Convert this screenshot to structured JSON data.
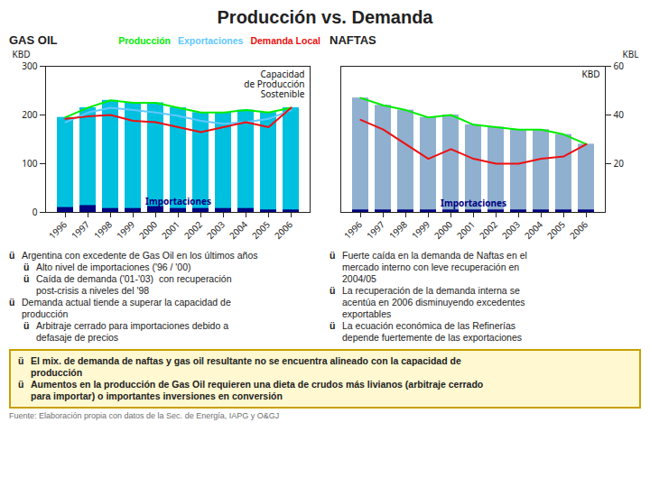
{
  "title": "Producción vs. Demanda",
  "chart_data": [
    {
      "type": "bar",
      "title": "GAS OIL",
      "ylabel": "KBD",
      "categories": [
        "1996",
        "1997",
        "1998",
        "1999",
        "2000",
        "2001",
        "2002",
        "2003",
        "2004",
        "2005",
        "2006"
      ],
      "ylim": [
        0,
        300
      ],
      "yticks": [
        0,
        100,
        200,
        300
      ],
      "series": [
        {
          "type": "bar",
          "color": "#00c0e0",
          "values": [
            195,
            215,
            230,
            225,
            225,
            215,
            205,
            205,
            210,
            205,
            215
          ]
        },
        {
          "name": "Importaciones",
          "type": "bar",
          "color": "#000080",
          "values": [
            10,
            14,
            8,
            8,
            12,
            8,
            8,
            8,
            8,
            5,
            5
          ]
        },
        {
          "name": "Producción",
          "type": "line",
          "color": "#00ee00",
          "values": [
            195,
            215,
            230,
            225,
            225,
            215,
            205,
            205,
            210,
            205,
            215
          ]
        },
        {
          "name": "Exportaciones",
          "type": "line",
          "color": "#60c8ff",
          "values": [
            185,
            205,
            215,
            210,
            205,
            198,
            188,
            182,
            185,
            192,
            210
          ]
        },
        {
          "name": "Demanda Local",
          "type": "line",
          "color": "#ee1010",
          "values": [
            192,
            197,
            200,
            188,
            185,
            175,
            165,
            175,
            185,
            175,
            215
          ]
        }
      ],
      "annotations": [
        "Capacidad\nde Producción\nSostenible"
      ]
    },
    {
      "type": "bar",
      "title": "NAFTAS",
      "ylabel": "KBL",
      "categories": [
        "1996",
        "1997",
        "1998",
        "1999",
        "2000",
        "2001",
        "2002",
        "2003",
        "2004",
        "2005",
        "2006"
      ],
      "ylim": [
        0,
        60
      ],
      "yticks": [
        20,
        40,
        60
      ],
      "series": [
        {
          "type": "bar",
          "color": "#90b0d0",
          "values": [
            47,
            44,
            42,
            39,
            40,
            36,
            35,
            34,
            34,
            32,
            28
          ]
        },
        {
          "name": "Importaciones",
          "type": "bar",
          "color": "#000080",
          "values": [
            1,
            1,
            1,
            1,
            1,
            1,
            1,
            1,
            1,
            1,
            1
          ]
        },
        {
          "type": "line",
          "color": "#00ee00",
          "values": [
            47,
            44,
            42,
            39,
            40,
            36,
            35,
            34,
            34,
            32,
            28
          ]
        },
        {
          "type": "line",
          "color": "#ee1010",
          "values": [
            38,
            34,
            28,
            22,
            26,
            22,
            20,
            20,
            22,
            23,
            28
          ]
        }
      ],
      "annotations": [
        "KBD"
      ]
    }
  ],
  "annotations": [
    [
      {
        "bullet": "ü",
        "text": "Argentina con excedente de Gas Oil en los últimos años",
        "items": [
          {
            "bullet": "ü",
            "text": "Alto nivel de importaciones ('96 / '00)"
          },
          {
            "bullet": "ü",
            "text": "Caída de demanda ('01-'03)  con recuperación\npost-crisis a niveles del '98"
          }
        ]
      },
      {
        "bullet": "ü",
        "text": "Demanda actual tiende a superar la capacidad de\nproducción",
        "items": [
          {
            "bullet": "ü",
            "text": "Arbitraje cerrado para importaciones debido a\ndefasaje de precios"
          }
        ]
      }
    ],
    [
      {
        "bullet": "ü",
        "text": "Fuerte caída en la demanda de Naftas en el\nmercado interno con leve recuperación en\n2004/05"
      },
      {
        "bullet": "ü",
        "text": "La recuperación de la demanda interna se\nacentúa en 2006 disminuyendo excedentes\nexportables"
      },
      {
        "bullet": "ü",
        "text": "La ecuación económica de las Refinerías\ndepende fuertemente de las exportaciones"
      }
    ]
  ],
  "highlight": [
    {
      "bullet": "ü",
      "text": "El mix. de demanda de naftas y gas oil resultante no se encuentra alineado con la capacidad de\nproducción"
    },
    {
      "bullet": "ü",
      "text": "Aumentos en la producción de Gas Oil requieren una dieta de crudos más livianos (arbitraje cerrado\npara importar) o importantes inversiones en conversión"
    }
  ],
  "source": "Fuente: Elaboración propia con datos de la Sec. de Energía, IAPG y  O&GJ"
}
